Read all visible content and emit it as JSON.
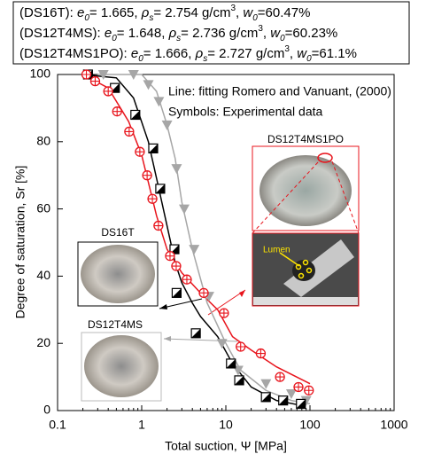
{
  "chart_data": {
    "type": "scatter",
    "header_lines": [
      [
        "(DS16T):  ",
        "e",
        "0",
        "= 1.665,  ",
        "ρ",
        "s",
        "= 2.754 g/cm",
        "3",
        ", ",
        "w",
        "0",
        "=60.47%"
      ],
      [
        "(DS12T4MS): ",
        "e",
        "0",
        "= 1.648, ",
        "ρ",
        "s",
        "= 2.736 g/cm",
        "3",
        ", ",
        "w",
        "0",
        "=60.23%"
      ],
      [
        "(DS12T4MS1PO): ",
        "e",
        "0",
        "= 1.666, ",
        "ρ",
        "s",
        "= 2.727 g/cm",
        "3",
        ", ",
        "w",
        "0",
        "=61.1%"
      ]
    ],
    "annotations": [
      "Line: fitting Romero and Vanuant, (2000)",
      "Symbols: Experimental data"
    ],
    "image_labels": [
      "DS12T4MS1PO",
      "DS16T",
      "DS12T4MS",
      "Lumen"
    ],
    "x_label": "Total suction, Ψ [MPa]",
    "y_label": "Degree of saturation, Sr [%]",
    "xscale": "log",
    "xlim": [
      0.1,
      1000
    ],
    "xticks": [
      0.1,
      1,
      10,
      100,
      1000
    ],
    "ylim": [
      0,
      100
    ],
    "yticks": [
      0,
      20,
      40,
      60,
      80,
      100
    ],
    "series": [
      {
        "color": "#000000",
        "marker": "half-square",
        "x": [
          0.23,
          0.48,
          0.84,
          1.37,
          1.66,
          2.45,
          2.6,
          4.4,
          11.5,
          14.4,
          29.9,
          48,
          78
        ],
        "values": [
          100,
          96,
          88,
          78,
          66,
          48,
          35,
          23,
          14,
          9,
          4,
          3,
          2
        ],
        "fit_x": [
          0.2,
          0.5,
          0.8,
          1.2,
          1.6,
          2,
          2.5,
          3,
          4,
          5,
          8,
          12,
          20,
          40,
          80
        ],
        "fit_values": [
          100,
          99,
          93,
          80,
          66,
          55,
          44,
          38,
          32,
          28,
          22,
          14,
          7,
          3,
          1.5
        ]
      },
      {
        "color": "#e8141c",
        "marker": "circle-cross",
        "x": [
          0.22,
          0.28,
          0.4,
          0.51,
          0.71,
          0.95,
          1.16,
          1.34,
          1.58,
          2.17,
          2.57,
          3.44,
          5.46,
          9.5,
          15,
          26,
          44,
          73,
          97
        ],
        "values": [
          100,
          98,
          95,
          89,
          83,
          77,
          70,
          63,
          55,
          46,
          43,
          39,
          35,
          29,
          19,
          17,
          10,
          7,
          6
        ],
        "fit_x": [
          0.2,
          0.4,
          0.7,
          1,
          1.5,
          2,
          3,
          5,
          8,
          12,
          20,
          40,
          100
        ],
        "fit_values": [
          100,
          96,
          86,
          76,
          58,
          48,
          41,
          35,
          30,
          22,
          18,
          13,
          8
        ]
      },
      {
        "color": "#a6a6a6",
        "marker": "triangle",
        "x": [
          0.35,
          0.8,
          1.2,
          1.6,
          2,
          2.6,
          3.2,
          4.2,
          6.3,
          9,
          14,
          30,
          60,
          90
        ],
        "values": [
          100,
          100,
          97,
          92,
          85,
          72,
          60,
          48,
          34,
          20,
          12,
          8,
          5,
          3
        ],
        "fit_x": [
          0.3,
          1,
          1.5,
          2,
          2.5,
          3,
          4,
          6,
          10,
          15,
          30,
          60,
          100
        ],
        "fit_values": [
          100,
          100,
          95,
          85,
          75,
          62,
          48,
          32,
          20,
          12,
          6,
          3,
          2
        ]
      }
    ]
  }
}
